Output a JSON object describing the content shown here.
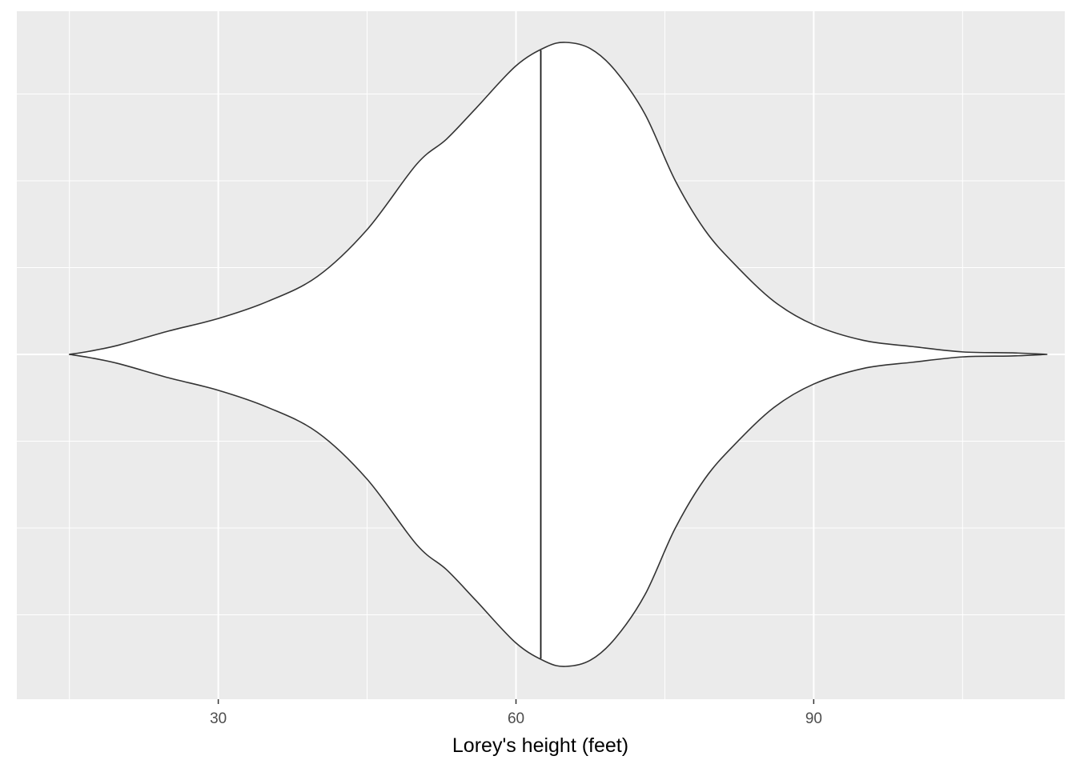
{
  "chart_data": {
    "type": "violin",
    "title": "",
    "xlabel": "Lorey's height (feet)",
    "ylabel": "",
    "xlim": [
      9.7,
      115.3
    ],
    "x_ticks": [
      30,
      60,
      90
    ],
    "x_tick_labels": [
      "30",
      "60",
      "90"
    ],
    "grid": true,
    "legend": "none",
    "orientation": "horizontal",
    "median": 62.5,
    "density_profile": [
      {
        "x": 15.0,
        "w": 0.0
      },
      {
        "x": 17.0,
        "w": 0.01
      },
      {
        "x": 20.0,
        "w": 0.03
      },
      {
        "x": 25.0,
        "w": 0.075
      },
      {
        "x": 30.0,
        "w": 0.115
      },
      {
        "x": 35.0,
        "w": 0.17
      },
      {
        "x": 40.0,
        "w": 0.25
      },
      {
        "x": 45.0,
        "w": 0.4
      },
      {
        "x": 50.0,
        "w": 0.61
      },
      {
        "x": 53.0,
        "w": 0.69
      },
      {
        "x": 56.0,
        "w": 0.79
      },
      {
        "x": 60.0,
        "w": 0.925
      },
      {
        "x": 63.0,
        "w": 0.985
      },
      {
        "x": 65.0,
        "w": 1.0
      },
      {
        "x": 67.5,
        "w": 0.98
      },
      {
        "x": 70.0,
        "w": 0.91
      },
      {
        "x": 73.0,
        "w": 0.77
      },
      {
        "x": 76.0,
        "w": 0.56
      },
      {
        "x": 79.0,
        "w": 0.4
      },
      {
        "x": 82.0,
        "w": 0.29
      },
      {
        "x": 86.0,
        "w": 0.17
      },
      {
        "x": 90.0,
        "w": 0.095
      },
      {
        "x": 95.0,
        "w": 0.045
      },
      {
        "x": 100.0,
        "w": 0.025
      },
      {
        "x": 105.0,
        "w": 0.008
      },
      {
        "x": 110.0,
        "w": 0.005
      },
      {
        "x": 113.5,
        "w": 0.0
      }
    ],
    "colors": {
      "panel_background": "#ebebeb",
      "grid_major": "#ffffff",
      "violin_fill": "#ffffff",
      "violin_outline": "#333333",
      "median_line": "#1a1a1a",
      "tick_label": "#4d4d4d",
      "axis_title": "#000000"
    }
  }
}
